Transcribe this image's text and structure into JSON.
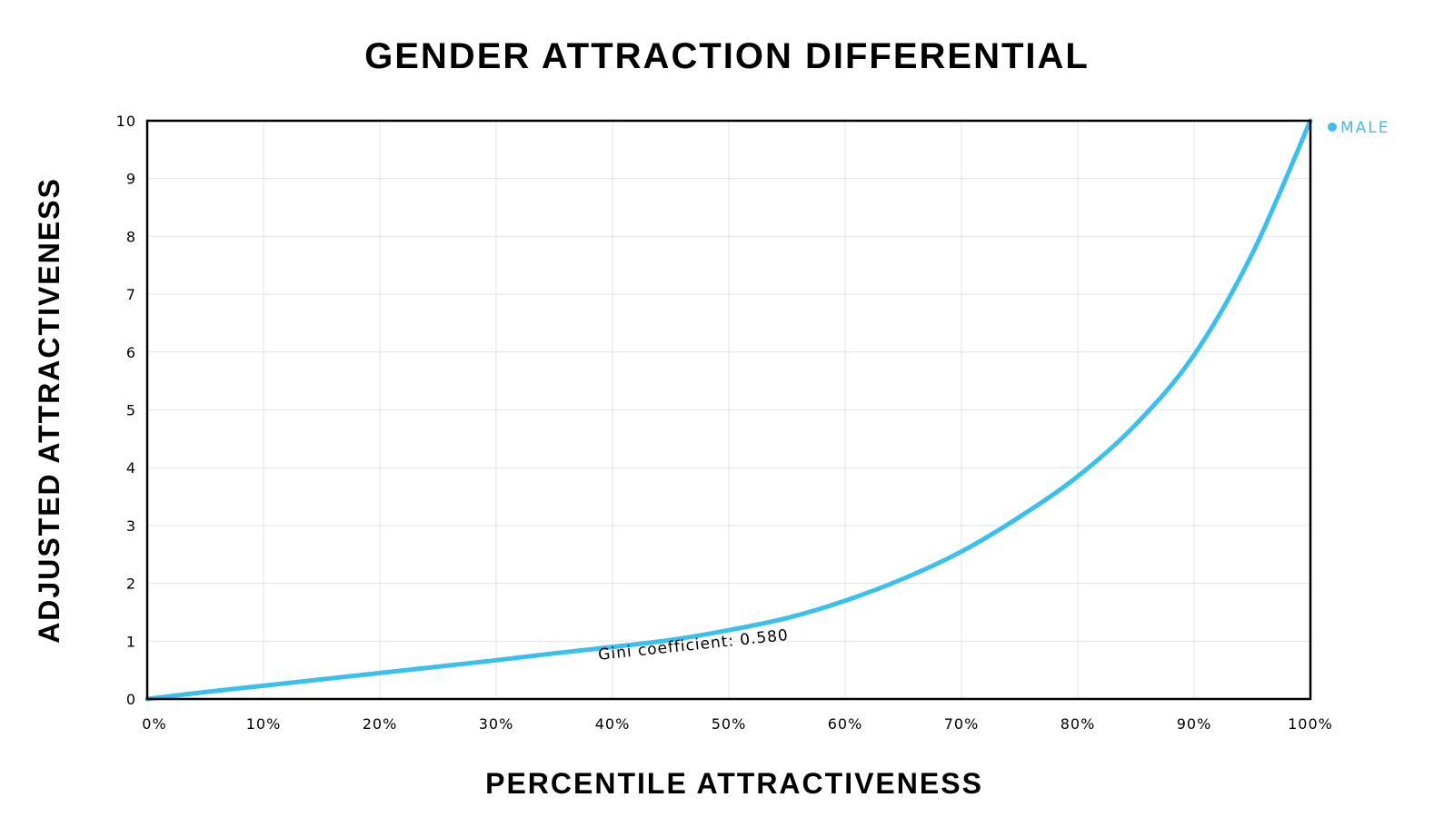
{
  "chart_data": {
    "type": "line",
    "title": "GENDER ATTRACTION DIFFERENTIAL",
    "xlabel": "PERCENTILE ATTRACTIVENESS",
    "ylabel": "ADJUSTED ATTRACTIVENESS",
    "xlim": [
      0,
      100
    ],
    "ylim": [
      0,
      10
    ],
    "grid": true,
    "x_ticks": [
      "0%",
      "10%",
      "20%",
      "30%",
      "40%",
      "50%",
      "60%",
      "70%",
      "80%",
      "90%",
      "100%"
    ],
    "y_ticks": [
      "0",
      "1",
      "2",
      "3",
      "4",
      "5",
      "6",
      "7",
      "8",
      "9",
      "10"
    ],
    "legend_position": "top-right",
    "series": [
      {
        "name": "MALE",
        "color": "#3bbfec",
        "x": [
          0,
          5,
          10,
          15,
          20,
          25,
          30,
          35,
          40,
          45,
          50,
          55,
          60,
          65,
          70,
          75,
          80,
          85,
          90,
          95,
          100
        ],
        "y": [
          0.0,
          0.12,
          0.23,
          0.34,
          0.45,
          0.56,
          0.67,
          0.79,
          0.9,
          1.02,
          1.19,
          1.4,
          1.7,
          2.08,
          2.55,
          3.15,
          3.85,
          4.75,
          5.95,
          7.7,
          10.0
        ]
      }
    ],
    "annotations": [
      {
        "text": "Gini coefficient: 0.580",
        "x": 47,
        "y": 0.85
      }
    ]
  }
}
